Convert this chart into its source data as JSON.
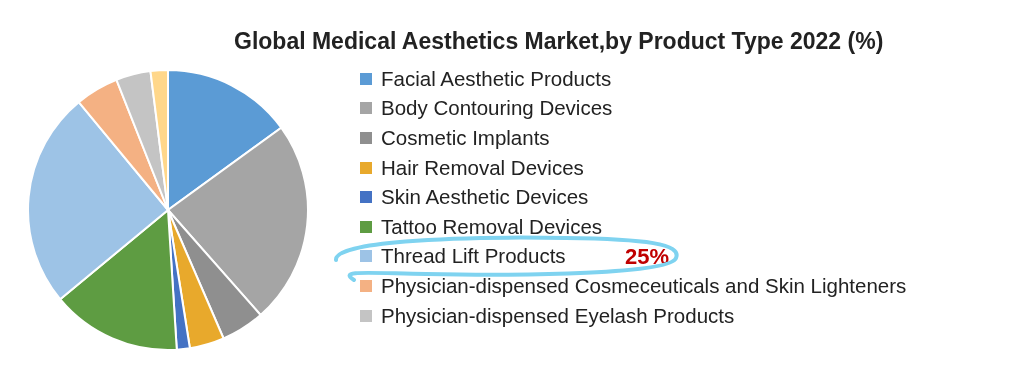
{
  "chart_data": {
    "type": "pie",
    "title": "Global Medical Aesthetics Market,by Product Type  2022 (%)",
    "categories": [
      "Facial Aesthetic Products",
      "Body Contouring Devices",
      "Cosmetic Implants",
      "Hair Removal Devices",
      "Skin Aesthetic Devices",
      "Tattoo Removal Devices",
      "Thread Lift Products",
      "Physician-dispensed Cosmeceuticals and Skin Lighteners",
      "Physician-dispensed Eyelash Products",
      null
    ],
    "values": [
      15,
      23.5,
      5,
      4,
      1.5,
      15,
      25,
      5,
      4,
      2
    ],
    "colors": [
      "#5b9bd5",
      "#a5a5a5",
      "#8f8f8f",
      "#e8a92c",
      "#4472c4",
      "#5e9c42",
      "#9dc3e6",
      "#f4b183",
      "#c4c4c4",
      "#ffd78a"
    ],
    "annotations": [
      "25%"
    ],
    "legend": "right"
  }
}
